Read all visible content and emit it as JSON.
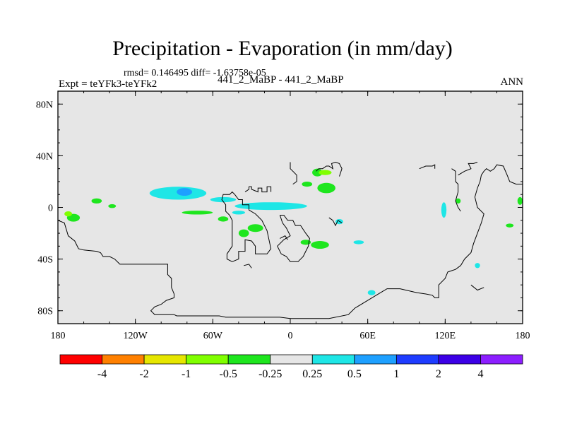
{
  "title": "Precipitation - Evaporation (in mm/day)",
  "stats": "rmsd= 0.146495 diff= -1.63758e-05",
  "experiment": "Expt = teYFk3-teYFk2",
  "subtitle": "441_2_MaBP - 441_2_MaBP",
  "season": "ANN",
  "map": {
    "projection": "cylindrical-equidistant",
    "lon_range": [
      -180,
      180
    ],
    "lat_range": [
      -90,
      90
    ],
    "background_color": "#e6e6e6",
    "x_ticks": [
      {
        "lon": -180,
        "label": "180"
      },
      {
        "lon": -120,
        "label": "120W"
      },
      {
        "lon": -60,
        "label": "60W"
      },
      {
        "lon": 0,
        "label": "0"
      },
      {
        "lon": 60,
        "label": "60E"
      },
      {
        "lon": 120,
        "label": "120E"
      },
      {
        "lon": 180,
        "label": "180"
      }
    ],
    "y_ticks": [
      {
        "lat": 80,
        "label": "80N"
      },
      {
        "lat": 40,
        "label": "40N"
      },
      {
        "lat": 0,
        "label": "0"
      },
      {
        "lat": -40,
        "label": "40S"
      },
      {
        "lat": -80,
        "label": "80S"
      }
    ]
  },
  "colorbar": {
    "colors": [
      "#ff0000",
      "#ff8000",
      "#e6e600",
      "#80ff00",
      "#1ee61e",
      "#e6e6e6",
      "#1ee6e6",
      "#1ea0ff",
      "#1e3cff",
      "#3c00e6",
      "#8c1eff"
    ],
    "labels": [
      "-4",
      "-2",
      "-1",
      "-0.5",
      "-0.25",
      "0.25",
      "0.5",
      "1",
      "2",
      "4"
    ]
  },
  "coastlines": [
    [
      [
        -180,
        -10
      ],
      [
        -175,
        -12
      ],
      [
        -172,
        -22
      ],
      [
        -167,
        -26
      ],
      [
        -164,
        -32
      ],
      [
        -160,
        -33
      ],
      [
        -150,
        -34
      ],
      [
        -147,
        -35
      ],
      [
        -145,
        -38
      ],
      [
        -140,
        -38
      ],
      [
        -136,
        -40
      ],
      [
        -132,
        -44
      ],
      [
        -95,
        -44
      ],
      [
        -95,
        -52
      ],
      [
        -92,
        -55
      ],
      [
        -92,
        -62
      ],
      [
        -90,
        -67
      ],
      [
        -90,
        -70
      ],
      [
        -96,
        -72
      ],
      [
        -100,
        -75
      ],
      [
        -105,
        -77
      ],
      [
        -108,
        -80
      ],
      [
        -105,
        -83
      ],
      [
        -90,
        -83
      ],
      [
        -88,
        -84
      ],
      [
        -55,
        -84
      ],
      [
        -50,
        -85
      ],
      [
        -35,
        -85
      ],
      [
        -20,
        -85
      ],
      [
        -8,
        -85
      ],
      [
        0,
        -86
      ],
      [
        30,
        -86
      ],
      [
        45,
        -83
      ],
      [
        50,
        -78
      ],
      [
        60,
        -72
      ],
      [
        70,
        -66
      ],
      [
        75,
        -63
      ],
      [
        85,
        -63
      ],
      [
        98,
        -66
      ],
      [
        105,
        -67
      ],
      [
        110,
        -68
      ],
      [
        112,
        -70
      ],
      [
        115,
        -70
      ],
      [
        115,
        -60
      ],
      [
        120,
        -55
      ],
      [
        122,
        -50
      ],
      [
        128,
        -48
      ],
      [
        132,
        -45
      ],
      [
        135,
        -40
      ],
      [
        140,
        -35
      ],
      [
        142,
        -28
      ],
      [
        145,
        -20
      ],
      [
        148,
        -12
      ],
      [
        150,
        -5
      ],
      [
        145,
        0
      ],
      [
        143,
        8
      ],
      [
        145,
        15
      ],
      [
        147,
        20
      ],
      [
        148,
        25
      ],
      [
        150,
        28
      ],
      [
        152,
        30
      ],
      [
        155,
        28
      ],
      [
        158,
        30
      ],
      [
        160,
        33
      ],
      [
        165,
        32
      ],
      [
        168,
        25
      ],
      [
        170,
        20
      ],
      [
        175,
        18
      ],
      [
        180,
        18
      ]
    ],
    [
      [
        -45,
        -42
      ],
      [
        -40,
        -40
      ],
      [
        -40,
        -34
      ],
      [
        -35,
        -34
      ],
      [
        -35,
        -25
      ],
      [
        -30,
        -26
      ],
      [
        -27,
        -30
      ],
      [
        -27,
        -36
      ],
      [
        -18,
        -36
      ],
      [
        -15,
        -32
      ],
      [
        -18,
        -18
      ],
      [
        -22,
        -10
      ],
      [
        -27,
        -5
      ],
      [
        -32,
        -2
      ],
      [
        -32,
        2
      ],
      [
        -37,
        2
      ],
      [
        -37,
        6
      ],
      [
        -40,
        6
      ],
      [
        -43,
        10
      ],
      [
        -45,
        12
      ],
      [
        -47,
        10
      ],
      [
        -52,
        10
      ],
      [
        -53,
        6
      ],
      [
        -50,
        2
      ],
      [
        -50,
        -3
      ],
      [
        -47,
        -6
      ],
      [
        -45,
        -10
      ],
      [
        -45,
        -30
      ],
      [
        -49,
        -36
      ],
      [
        -49,
        -40
      ],
      [
        -45,
        -42
      ]
    ],
    [
      [
        -35,
        12
      ],
      [
        -32,
        14
      ],
      [
        -32,
        16
      ],
      [
        -30,
        16
      ],
      [
        -30,
        14
      ],
      [
        -25,
        12
      ],
      [
        -25,
        15
      ],
      [
        -22,
        15
      ],
      [
        -22,
        12
      ],
      [
        -18,
        12
      ],
      [
        -18,
        16
      ],
      [
        -15,
        16
      ],
      [
        -15,
        12
      ]
    ],
    [
      [
        -8,
        -6
      ],
      [
        -5,
        -6
      ],
      [
        -2,
        -10
      ],
      [
        2,
        -10
      ],
      [
        4,
        -14
      ],
      [
        8,
        -14
      ],
      [
        12,
        -20
      ],
      [
        15,
        -24
      ],
      [
        14,
        -30
      ],
      [
        12,
        -34
      ],
      [
        10,
        -38
      ],
      [
        6,
        -42
      ],
      [
        0,
        -42
      ],
      [
        -3,
        -38
      ],
      [
        -7,
        -36
      ],
      [
        -10,
        -30
      ],
      [
        -5,
        -25
      ],
      [
        0,
        -22
      ],
      [
        -3,
        -16
      ],
      [
        -6,
        -12
      ],
      [
        -8,
        -6
      ]
    ],
    [
      [
        30,
        -8
      ],
      [
        33,
        -10
      ],
      [
        35,
        -14
      ],
      [
        37,
        -10
      ],
      [
        40,
        -12
      ]
    ],
    [
      [
        0,
        35
      ],
      [
        0,
        30
      ],
      [
        2,
        28
      ],
      [
        5,
        25
      ],
      [
        5,
        20
      ],
      [
        2,
        18
      ]
    ],
    [
      [
        20,
        28
      ],
      [
        22,
        30
      ],
      [
        25,
        30
      ],
      [
        28,
        32
      ],
      [
        30,
        32
      ],
      [
        33,
        30
      ],
      [
        32,
        34
      ],
      [
        35,
        35
      ],
      [
        38,
        34
      ],
      [
        40,
        30
      ],
      [
        38,
        24
      ]
    ],
    [
      [
        100,
        30
      ],
      [
        105,
        32
      ],
      [
        110,
        32
      ],
      [
        112,
        33
      ],
      [
        112,
        30
      ]
    ],
    [
      [
        125,
        30
      ],
      [
        128,
        28
      ],
      [
        128,
        20
      ],
      [
        130,
        18
      ],
      [
        130,
        12
      ],
      [
        128,
        5
      ],
      [
        130,
        0
      ],
      [
        132,
        -3
      ]
    ],
    [
      [
        130,
        25
      ],
      [
        135,
        28
      ],
      [
        140,
        30
      ],
      [
        138,
        34
      ],
      [
        142,
        34
      ],
      [
        145,
        35
      ]
    ],
    [
      [
        -8,
        -24
      ],
      [
        -4,
        -22
      ],
      [
        -2,
        -25
      ]
    ],
    [
      [
        -36,
        -45
      ],
      [
        -32,
        -44
      ],
      [
        -30,
        -47
      ]
    ],
    [
      [
        140,
        -60
      ],
      [
        145,
        -64
      ],
      [
        150,
        -62
      ]
    ]
  ],
  "anomalies": [
    {
      "lon": -87,
      "lat": 11,
      "rx": 22,
      "ry": 5,
      "value": 0.3
    },
    {
      "lon": -82,
      "lat": 12,
      "rx": 6,
      "ry": 3,
      "value": 0.8
    },
    {
      "lon": -15,
      "lat": 1,
      "rx": 28,
      "ry": 3,
      "value": 0.3
    },
    {
      "lon": -52,
      "lat": 6,
      "rx": 10,
      "ry": 2,
      "value": 0.3
    },
    {
      "lon": -72,
      "lat": -4,
      "rx": 12,
      "ry": 1.5,
      "value": -0.3
    },
    {
      "lon": -40,
      "lat": -4,
      "rx": 5,
      "ry": 1.5,
      "value": 0.3
    },
    {
      "lon": -52,
      "lat": -9,
      "rx": 4,
      "ry": 2,
      "value": -0.3
    },
    {
      "lon": -27,
      "lat": -16,
      "rx": 6,
      "ry": 3,
      "value": -0.3
    },
    {
      "lon": -36,
      "lat": -20,
      "rx": 4,
      "ry": 3,
      "value": -0.3
    },
    {
      "lon": 28,
      "lat": 15,
      "rx": 7,
      "ry": 4,
      "value": -0.3
    },
    {
      "lon": 13,
      "lat": 18,
      "rx": 4,
      "ry": 2,
      "value": -0.3
    },
    {
      "lon": 21,
      "lat": 27,
      "rx": 4,
      "ry": 3,
      "value": -0.3
    },
    {
      "lon": 27,
      "lat": 27,
      "rx": 5,
      "ry": 2,
      "value": -0.7
    },
    {
      "lon": -150,
      "lat": 5,
      "rx": 4,
      "ry": 2,
      "value": -0.3
    },
    {
      "lon": -138,
      "lat": 1,
      "rx": 3,
      "ry": 1.5,
      "value": -0.3
    },
    {
      "lon": -168,
      "lat": -8,
      "rx": 5,
      "ry": 3,
      "value": -0.3
    },
    {
      "lon": -172,
      "lat": -5,
      "rx": 3,
      "ry": 2,
      "value": -0.7
    },
    {
      "lon": 23,
      "lat": -29,
      "rx": 7,
      "ry": 3,
      "value": -0.3
    },
    {
      "lon": 12,
      "lat": -27,
      "rx": 4,
      "ry": 2,
      "value": -0.3
    },
    {
      "lon": 38,
      "lat": -11,
      "rx": 3,
      "ry": 2,
      "value": 0.3
    },
    {
      "lon": 53,
      "lat": -27,
      "rx": 4,
      "ry": 1.5,
      "value": 0.3
    },
    {
      "lon": 119,
      "lat": -2,
      "rx": 2,
      "ry": 6,
      "value": 0.3
    },
    {
      "lon": 130,
      "lat": 5,
      "rx": 2,
      "ry": 2,
      "value": -0.3
    },
    {
      "lon": 170,
      "lat": -14,
      "rx": 3,
      "ry": 1.5,
      "value": -0.3
    },
    {
      "lon": 178,
      "lat": 5,
      "rx": 2,
      "ry": 3,
      "value": -0.3
    },
    {
      "lon": 63,
      "lat": -66,
      "rx": 3,
      "ry": 2,
      "value": 0.3
    },
    {
      "lon": 145,
      "lat": -45,
      "rx": 2,
      "ry": 2,
      "value": 0.3
    }
  ]
}
